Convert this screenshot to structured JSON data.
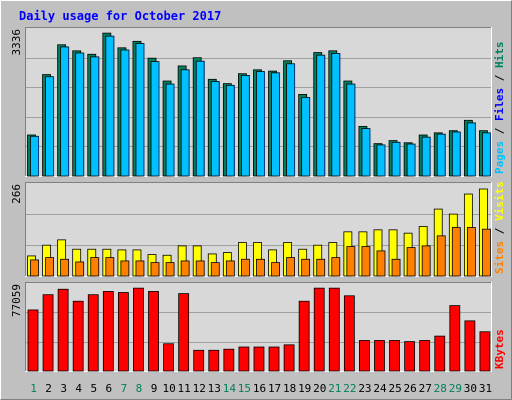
{
  "title": "Daily usage for October 2017",
  "colors": {
    "page_bg": "#c0c0c0",
    "panel_bg": "#d8d8d8",
    "title": "#0000ff",
    "pages": "#00c0ff",
    "hits": "#008060",
    "files": "#0000ff",
    "visits": "#ffff00",
    "sites": "#ff8000",
    "kbytes": "#ff0000",
    "weekend_day": "#00805c",
    "weekday": "#000000"
  },
  "chart_data": [
    {
      "type": "bar",
      "panel": "hits",
      "ymax_label": "3336",
      "ylim": [
        0,
        3336
      ],
      "categories": [
        "1",
        "2",
        "3",
        "4",
        "5",
        "6",
        "7",
        "8",
        "9",
        "10",
        "11",
        "12",
        "13",
        "14",
        "15",
        "16",
        "17",
        "18",
        "19",
        "20",
        "21",
        "22",
        "23",
        "24",
        "25",
        "26",
        "27",
        "28",
        "29",
        "30",
        "31"
      ],
      "weekend_days": [
        "1",
        "7",
        "8",
        "14",
        "15",
        "21",
        "22",
        "28",
        "29"
      ],
      "side_labels": [
        "Pages",
        "Files",
        "Hits"
      ],
      "series": [
        {
          "name": "Hits",
          "values": [
            950,
            2350,
            3040,
            2900,
            2820,
            3310,
            2970,
            3120,
            2730,
            2200,
            2550,
            2740,
            2240,
            2140,
            2370,
            2460,
            2430,
            2670,
            1890,
            2860,
            2900,
            2200,
            1150,
            750,
            820,
            770,
            950,
            1000,
            1050,
            1290,
            1050
          ]
        },
        {
          "name": "Files",
          "values": [
            920,
            2300,
            2990,
            2850,
            2760,
            3240,
            2920,
            3070,
            2650,
            2130,
            2460,
            2660,
            2190,
            2100,
            2330,
            2420,
            2390,
            2600,
            1820,
            2800,
            2840,
            2130,
            1100,
            720,
            780,
            740,
            900,
            970,
            1020,
            1230,
            1000
          ]
        },
        {
          "name": "Pages",
          "values": [
            920,
            2300,
            2990,
            2850,
            2760,
            3240,
            2920,
            3070,
            2650,
            2130,
            2460,
            2660,
            2190,
            2100,
            2330,
            2420,
            2390,
            2600,
            1820,
            2800,
            2840,
            2130,
            1100,
            720,
            780,
            740,
            900,
            970,
            1020,
            1230,
            1000
          ]
        }
      ]
    },
    {
      "type": "bar",
      "panel": "visits",
      "ymax_label": "266",
      "ylim": [
        0,
        266
      ],
      "side_labels": [
        "Sites",
        "Visits"
      ],
      "series": [
        {
          "name": "Visits",
          "values": [
            60,
            92,
            108,
            80,
            80,
            80,
            78,
            78,
            64,
            62,
            90,
            90,
            66,
            70,
            100,
            100,
            78,
            100,
            80,
            92,
            100,
            132,
            132,
            138,
            138,
            128,
            148,
            200,
            185,
            245,
            260
          ]
        },
        {
          "name": "Sites",
          "values": [
            48,
            55,
            50,
            42,
            55,
            55,
            45,
            45,
            40,
            40,
            45,
            45,
            40,
            45,
            50,
            50,
            40,
            55,
            50,
            50,
            55,
            88,
            88,
            75,
            50,
            85,
            90,
            120,
            145,
            145,
            140
          ]
        }
      ]
    },
    {
      "type": "bar",
      "panel": "kbytes",
      "ymax_label": "77059",
      "ylim": [
        0,
        77059
      ],
      "side_labels": [
        "KBytes"
      ],
      "series": [
        {
          "name": "KBytes",
          "values": [
            56000,
            70000,
            75000,
            64000,
            70000,
            73000,
            72000,
            76000,
            73000,
            25000,
            71000,
            19000,
            19000,
            20000,
            22000,
            22000,
            22000,
            24000,
            64000,
            76000,
            76000,
            69000,
            28000,
            28000,
            28000,
            27000,
            28000,
            32000,
            60000,
            46000,
            36000
          ]
        }
      ]
    }
  ]
}
